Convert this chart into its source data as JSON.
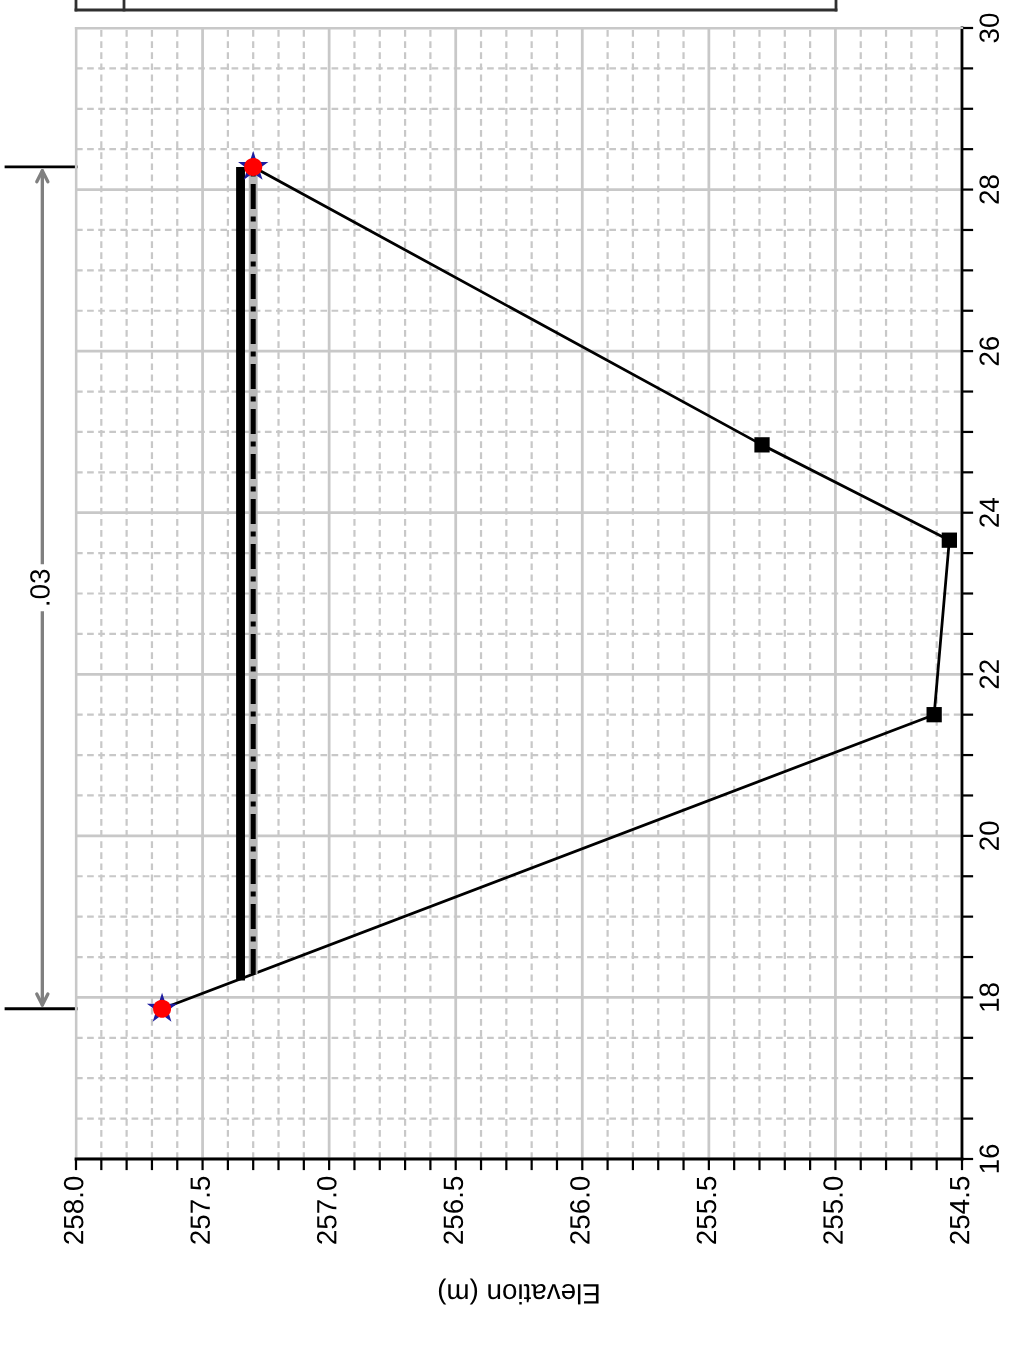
{
  "chart_data": {
    "type": "line",
    "xlabel": "Elevation (m)",
    "annotations": [
      ".03"
    ],
    "grid": true,
    "xlim": [
      258.0,
      254.5
    ],
    "xticks": [
      {
        "value": 258.0,
        "label": "258.0"
      },
      {
        "value": 257.9,
        "label": null
      },
      {
        "value": 257.8,
        "label": null
      },
      {
        "value": 257.7,
        "label": null
      },
      {
        "value": 257.6,
        "label": null
      },
      {
        "value": 257.5,
        "label": "257.5"
      },
      {
        "value": 257.4,
        "label": null
      },
      {
        "value": 257.3,
        "label": null
      },
      {
        "value": 257.2,
        "label": null
      },
      {
        "value": 257.1,
        "label": null
      },
      {
        "value": 257.0,
        "label": "257.0"
      },
      {
        "value": 256.9,
        "label": null
      },
      {
        "value": 256.8,
        "label": null
      },
      {
        "value": 256.7,
        "label": null
      },
      {
        "value": 256.6,
        "label": null
      },
      {
        "value": 256.5,
        "label": "256.5"
      },
      {
        "value": 256.4,
        "label": null
      },
      {
        "value": 256.3,
        "label": null
      },
      {
        "value": 256.2,
        "label": null
      },
      {
        "value": 256.1,
        "label": null
      },
      {
        "value": 256.0,
        "label": "256.0"
      },
      {
        "value": 255.9,
        "label": null
      },
      {
        "value": 255.8,
        "label": null
      },
      {
        "value": 255.7,
        "label": null
      },
      {
        "value": 255.6,
        "label": null
      },
      {
        "value": 255.5,
        "label": "255.5"
      },
      {
        "value": 255.4,
        "label": null
      },
      {
        "value": 255.3,
        "label": null
      },
      {
        "value": 255.2,
        "label": null
      },
      {
        "value": 255.1,
        "label": null
      },
      {
        "value": 255.0,
        "label": "255.0"
      },
      {
        "value": 254.9,
        "label": null
      },
      {
        "value": 254.8,
        "label": null
      },
      {
        "value": 254.7,
        "label": null
      },
      {
        "value": 254.6,
        "label": null
      },
      {
        "value": 254.5,
        "label": "254.5"
      }
    ],
    "ylim": [
      16,
      30
    ],
    "yticks": [
      16,
      {
        "value": 16.5,
        "label": null
      },
      {
        "value": 17,
        "label": null
      },
      {
        "value": 17.5,
        "label": null
      },
      18,
      {
        "value": 18.5,
        "label": null
      },
      {
        "value": 19,
        "label": null
      },
      {
        "value": 19.5,
        "label": null
      },
      20,
      {
        "value": 20.5,
        "label": null
      },
      {
        "value": 21,
        "label": null
      },
      {
        "value": 21.5,
        "label": null
      },
      22,
      {
        "value": 22.5,
        "label": null
      },
      {
        "value": 23,
        "label": null
      },
      {
        "value": 23.5,
        "label": null
      },
      24,
      {
        "value": 24.5,
        "label": null
      },
      {
        "value": 25,
        "label": null
      },
      {
        "value": 25.5,
        "label": null
      },
      26,
      {
        "value": 26.5,
        "label": null
      },
      {
        "value": 27,
        "label": null
      },
      {
        "value": 27.5,
        "label": null
      },
      28,
      {
        "value": 28.5,
        "label": null
      },
      {
        "value": 29,
        "label": null
      },
      {
        "value": 29.5,
        "label": null
      },
      30
    ],
    "series": [
      {
        "color": "#000000",
        "x": [
          257.66,
          254.61,
          254.55,
          255.29,
          257.3
        ],
        "values": [
          17.86,
          21.5,
          23.66,
          24.84,
          28.28
        ]
      },
      {
        "color": "#000000",
        "x": [
          257.35,
          257.35
        ],
        "values": [
          18.21,
          28.28
        ]
      },
      {
        "color": "#b8b8b8",
        "x": [
          257.3,
          257.3
        ],
        "values": [
          18.29,
          28.22
        ]
      },
      {
        "color": "#000000",
        "line_style": "dashed",
        "x": [
          257.3,
          257.3
        ],
        "values": [
          18.29,
          28.22
        ]
      },
      {
        "type": "scatter",
        "color": "#000000",
        "marker": "square",
        "x": [
          254.61,
          254.55,
          255.29
        ],
        "values": [
          21.5,
          23.66,
          24.84
        ]
      },
      {
        "type": "scatter",
        "color": "#1c1ca0",
        "marker": "star",
        "x": [
          257.66,
          257.3
        ],
        "values": [
          17.86,
          28.28
        ]
      },
      {
        "type": "scatter",
        "color": "#ff0000",
        "marker": "circle",
        "x": [
          257.66,
          257.3
        ],
        "values": [
          17.86,
          28.28
        ]
      }
    ]
  }
}
